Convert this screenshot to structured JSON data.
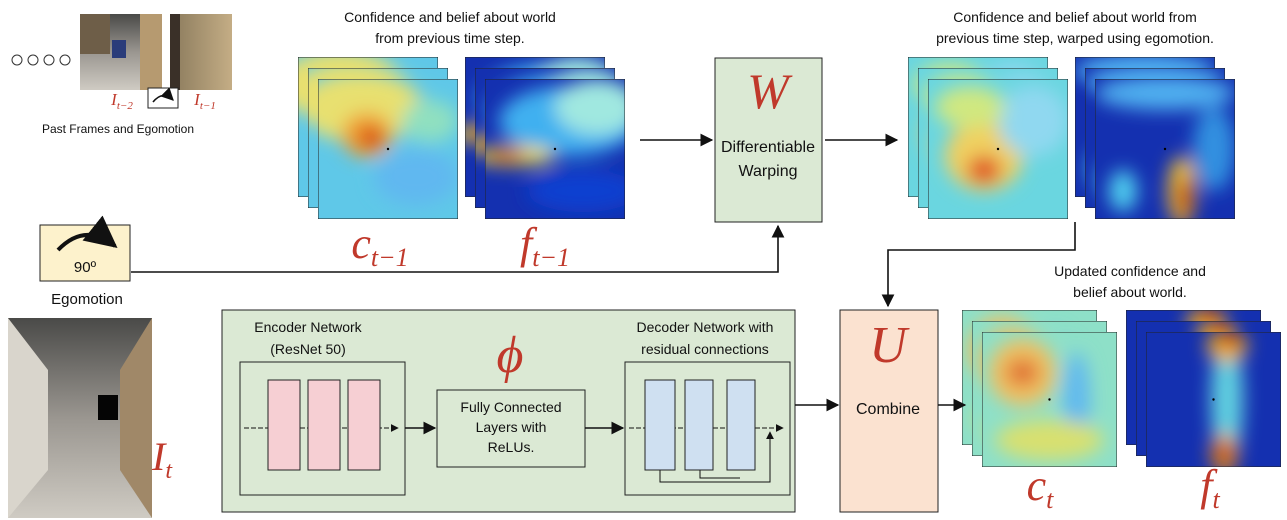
{
  "past_frames": {
    "caption": "Past Frames and Egomotion",
    "frames": [
      {
        "base": "I",
        "sub": "t−2"
      },
      {
        "base": "I",
        "sub": "t−1"
      }
    ]
  },
  "egomotion": {
    "angle": "90º",
    "caption": "Egomotion"
  },
  "current_frame": {
    "base": "I",
    "sub": "t"
  },
  "previous_state": {
    "caption_lines": [
      "Confidence and belief about world",
      "from previous time step."
    ],
    "confidence": {
      "base": "c",
      "sub": "t−1"
    },
    "belief": {
      "base": "f",
      "sub": "t−1"
    }
  },
  "warp": {
    "symbol": "W",
    "label_lines": [
      "Differentiable",
      "Warping"
    ]
  },
  "warped_state": {
    "caption_lines": [
      "Confidence and belief about world from",
      "previous time step, warped using egomotion."
    ]
  },
  "network": {
    "symbol": "ϕ",
    "encoder_lines": [
      "Encoder Network",
      "(ResNet 50)"
    ],
    "fc_lines": [
      "Fully Connected",
      "Layers with",
      "ReLUs."
    ],
    "decoder_lines": [
      "Decoder Network with",
      "residual connections"
    ]
  },
  "update": {
    "symbol": "U",
    "label": "Combine"
  },
  "updated_state": {
    "caption_lines": [
      "Updated confidence and",
      "belief about world."
    ],
    "confidence": {
      "base": "c",
      "sub": "t"
    },
    "belief": {
      "base": "f",
      "sub": "t"
    }
  }
}
